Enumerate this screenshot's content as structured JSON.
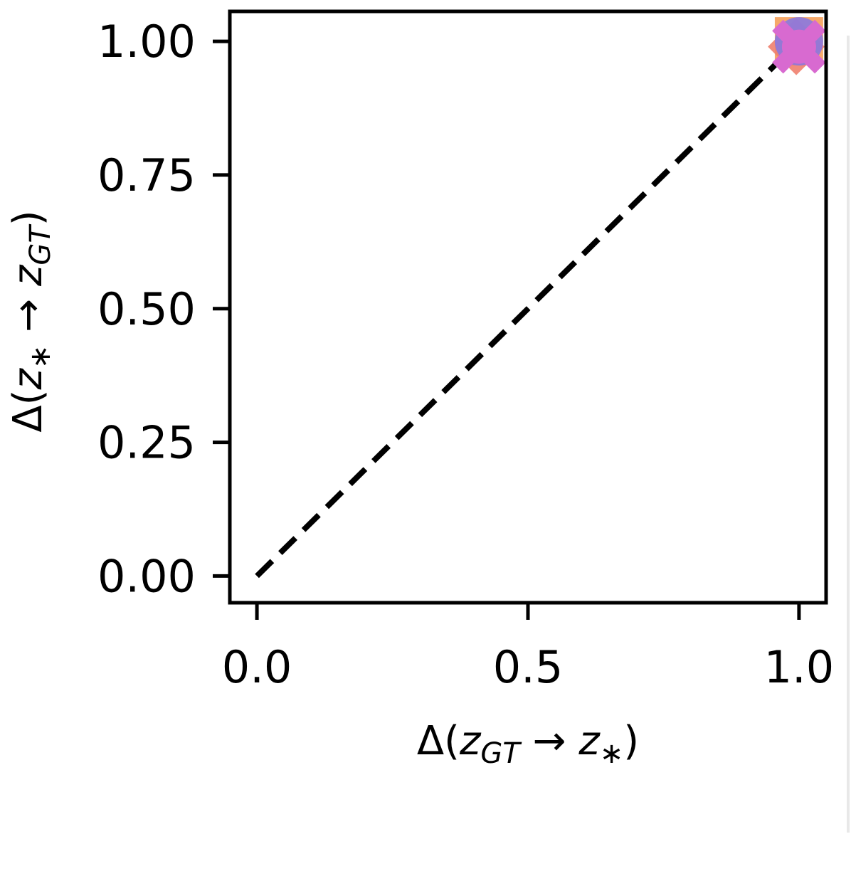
{
  "chart_data": {
    "type": "scatter",
    "title": "",
    "xlabel": "Δ(z_GT → z_*)",
    "ylabel": "Δ(z_* → z_GT)",
    "xlabel_parts": {
      "prefix": "Δ(",
      "a": "z",
      "a_sub": "GT",
      "arrow": " → ",
      "b": "z",
      "b_sub": "∗",
      "suffix": ")"
    },
    "ylabel_parts": {
      "prefix": "Δ(",
      "a": "z",
      "a_sub": "∗",
      "arrow": " → ",
      "b": "z",
      "b_sub": "GT",
      "suffix": ")"
    },
    "xlim": [
      -0.05,
      1.05
    ],
    "ylim": [
      -0.05,
      1.056
    ],
    "xticks": [
      0.0,
      0.5,
      1.0
    ],
    "xtick_labels": [
      "0.0",
      "0.5",
      "1.0"
    ],
    "yticks": [
      0.0,
      0.25,
      0.5,
      0.75,
      1.0
    ],
    "ytick_labels": [
      "0.00",
      "0.25",
      "0.50",
      "0.75",
      "1.00"
    ],
    "grid": false,
    "reference_line": {
      "style": "dashed",
      "color": "#000000",
      "from": [
        0,
        0
      ],
      "to": [
        1,
        1
      ]
    },
    "series": [
      {
        "marker": "square",
        "color": "#f5a05a",
        "points": [
          {
            "x": 1.0,
            "y": 1.0
          }
        ]
      },
      {
        "marker": "diamond",
        "color": "#f07f6e",
        "points": [
          {
            "x": 0.995,
            "y": 0.99
          }
        ]
      },
      {
        "marker": "circle",
        "color": "#8a78e0",
        "points": [
          {
            "x": 1.0,
            "y": 1.0
          }
        ]
      },
      {
        "marker": "x",
        "color": "#d86ad0",
        "points": [
          {
            "x": 1.0,
            "y": 0.99
          }
        ]
      }
    ]
  }
}
